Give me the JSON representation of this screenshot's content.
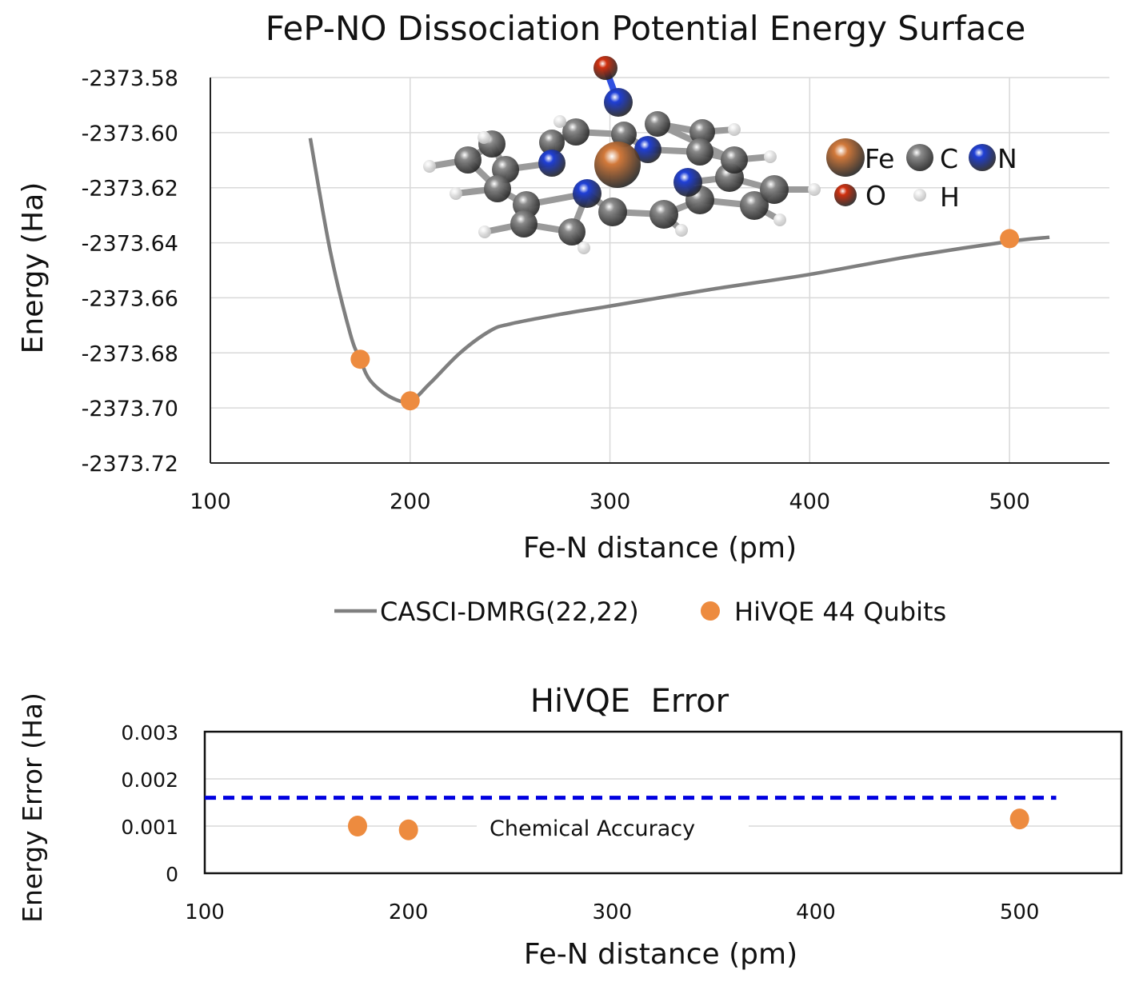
{
  "chart_data": [
    {
      "type": "line",
      "title": "FeP-NO Dissociation Potential Energy Surface",
      "xlabel": "Fe-N distance (pm)",
      "ylabel": "Energy (Ha)",
      "xlim": [
        100,
        550
      ],
      "ylim": [
        -2373.72,
        -2373.58
      ],
      "xticks": [
        "100",
        "200",
        "300",
        "400",
        "500"
      ],
      "yticks": [
        "-2373.58",
        "-2373.60",
        "-2373.62",
        "-2373.64",
        "-2373.66",
        "-2373.68",
        "-2373.70",
        "-2373.72"
      ],
      "grid": true,
      "legend_position": "bottom",
      "series": [
        {
          "name": "CASCI-DMRG(22,22)",
          "type": "line",
          "color": "#7f7f7f",
          "x": [
            150,
            160,
            170,
            175,
            180,
            190,
            200,
            210,
            225,
            240,
            250,
            275,
            300,
            350,
            400,
            450,
            500,
            520
          ],
          "y": [
            -2373.602,
            -2373.643,
            -2373.673,
            -2373.6823,
            -2373.69,
            -2373.696,
            -2373.6975,
            -2373.691,
            -2373.68,
            -2373.672,
            -2373.6695,
            -2373.666,
            -2373.663,
            -2373.657,
            -2373.6515,
            -2373.645,
            -2373.6395,
            -2373.638
          ]
        },
        {
          "name": "HiVQE 44 Qubits",
          "type": "scatter",
          "color": "#ed8b3f",
          "x": [
            175,
            200,
            500
          ],
          "y": [
            -2373.6823,
            -2373.6974,
            -2373.6385
          ]
        }
      ],
      "inset_legend": [
        "Fe",
        "C",
        "N",
        "O",
        "H"
      ],
      "atom_colors": {
        "Fe": "#d2793a",
        "C": "#8c8c8c",
        "N": "#1f3fd6",
        "O": "#d0300f",
        "H": "#f2f2f2"
      }
    },
    {
      "type": "scatter",
      "title": "HiVQE  Error",
      "xlabel": "Fe-N distance (pm)",
      "ylabel": "Energy Error (Ha)",
      "xlim": [
        100,
        550
      ],
      "ylim": [
        0,
        0.003
      ],
      "xticks": [
        "100",
        "200",
        "300",
        "400",
        "500"
      ],
      "yticks": [
        "0",
        "0.001",
        "0.002",
        "0.003"
      ],
      "grid": true,
      "series": [
        {
          "type": "scatter",
          "color": "#ed8b3f",
          "x": [
            175,
            200,
            500
          ],
          "y": [
            0.001,
            0.00092,
            0.00115
          ]
        }
      ],
      "reference_line": {
        "label": "Chemical Accuracy",
        "y": 0.0016,
        "x": [
          100,
          518
        ],
        "color": "#0000e0",
        "style": "dashed"
      }
    }
  ]
}
